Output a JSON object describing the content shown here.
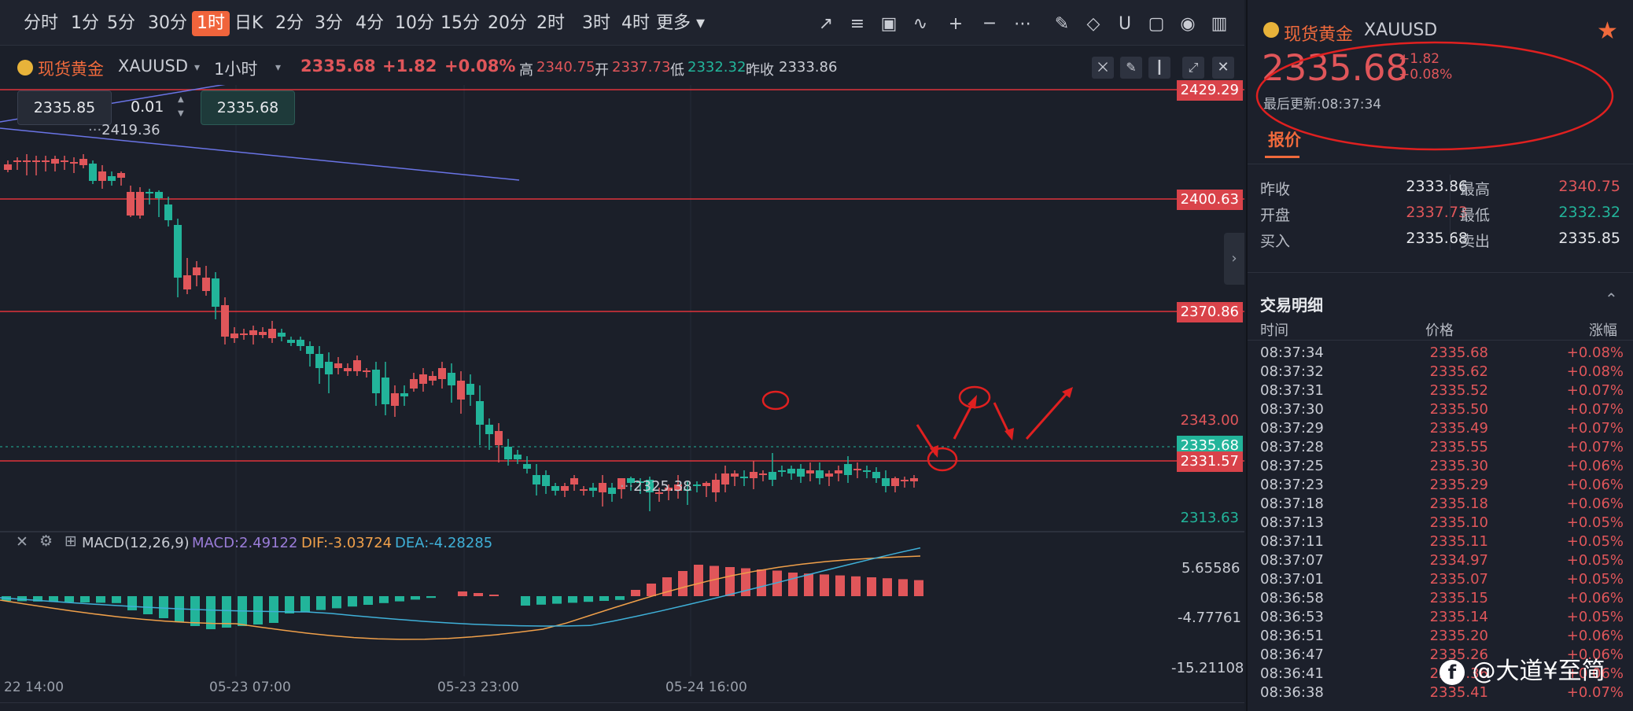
{
  "toolbar": {
    "timeframes": [
      "分时",
      "1分",
      "5分",
      "30分",
      "1时",
      "日K",
      "2分",
      "3分",
      "4分",
      "10分",
      "15分",
      "20分",
      "2时",
      "3时",
      "4时",
      "更多"
    ],
    "active": "1时"
  },
  "header": {
    "symbol_name": "现货黄金",
    "symbol": "XAUUSD",
    "interval": "1小时",
    "price": "2335.68",
    "change": "+1.82",
    "change_pct": "+0.08%",
    "high_label": "高",
    "high": "2340.75",
    "open_label": "开",
    "open": "2337.73",
    "low_label": "低",
    "low": "2332.32",
    "prev_label": "昨收",
    "prev": "2333.86"
  },
  "order": {
    "bid": "2335.85",
    "qty": "0.01",
    "ask": "2335.68"
  },
  "price_labels": {
    "p1": "2429.29",
    "p2": "2400.63",
    "p3": "2370.86",
    "p4": "2343.00",
    "p5": "2335.68",
    "p6": "2331.57",
    "p7": "2313.63",
    "hi_marker": "2419.36",
    "lo_marker": "2325.38"
  },
  "macd": {
    "title": "MACD(12,26,9)",
    "macd": "MACD:2.49122",
    "dif": "DIF:-3.03724",
    "dea": "DEA:-4.28285",
    "ax1": "5.65586",
    "ax2": "-4.77761",
    "ax3": "-15.21108"
  },
  "xaxis": [
    "22 14:00",
    "05-23 07:00",
    "05-23 23:00",
    "05-24 16:00"
  ],
  "colors": {
    "up": "#e0565a",
    "down": "#22b49a",
    "accent": "#f0643c",
    "annotation": "#e02020"
  },
  "panel": {
    "name": "现货黄金",
    "symbol": "XAUUSD",
    "price": "2335.68",
    "change": "+1.82",
    "change_pct": "+0.08%",
    "updated": "最后更新:08:37:34",
    "tab": "报价",
    "stats": {
      "prev_l": "昨收",
      "prev": "2333.86",
      "high_l": "最高",
      "high": "2340.75",
      "open_l": "开盘",
      "open": "2337.73",
      "low_l": "最低",
      "low": "2332.32",
      "buy_l": "买入",
      "buy": "2335.68",
      "sell_l": "卖出",
      "sell": "2335.85"
    },
    "trades_title": "交易明细",
    "cols": [
      "时间",
      "价格",
      "涨幅"
    ],
    "trades": [
      [
        "08:37:34",
        "2335.68",
        "+0.08%"
      ],
      [
        "08:37:32",
        "2335.62",
        "+0.08%"
      ],
      [
        "08:37:31",
        "2335.52",
        "+0.07%"
      ],
      [
        "08:37:30",
        "2335.50",
        "+0.07%"
      ],
      [
        "08:37:29",
        "2335.49",
        "+0.07%"
      ],
      [
        "08:37:28",
        "2335.55",
        "+0.07%"
      ],
      [
        "08:37:25",
        "2335.30",
        "+0.06%"
      ],
      [
        "08:37:23",
        "2335.29",
        "+0.06%"
      ],
      [
        "08:37:18",
        "2335.18",
        "+0.06%"
      ],
      [
        "08:37:13",
        "2335.10",
        "+0.05%"
      ],
      [
        "08:37:11",
        "2335.11",
        "+0.05%"
      ],
      [
        "08:37:07",
        "2334.97",
        "+0.05%"
      ],
      [
        "08:37:01",
        "2335.07",
        "+0.05%"
      ],
      [
        "08:36:58",
        "2335.15",
        "+0.06%"
      ],
      [
        "08:36:53",
        "2335.14",
        "+0.05%"
      ],
      [
        "08:36:51",
        "2335.20",
        "+0.06%"
      ],
      [
        "08:36:47",
        "2335.26",
        "+0.06%"
      ],
      [
        "08:36:41",
        "2335.36",
        "+0.06%"
      ],
      [
        "08:36:38",
        "2335.41",
        "+0.07%"
      ]
    ],
    "watermark": "@大道¥至简"
  }
}
